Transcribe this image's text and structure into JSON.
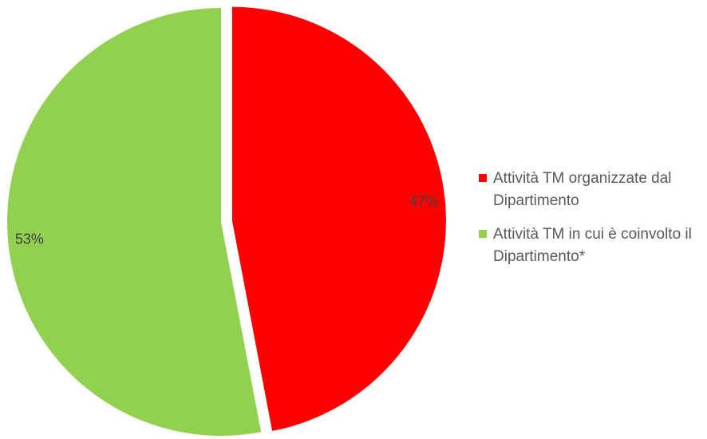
{
  "chart_data": {
    "type": "pie",
    "title": "",
    "slices": [
      {
        "label": "Attività TM organizzate dal Dipartimento",
        "value": 47,
        "data_label": "47%",
        "color": "#ff0000",
        "exploded": true
      },
      {
        "label": "Attività TM in cui è coinvolto il Dipartimento*",
        "value": 53,
        "data_label": "53%",
        "color": "#92d050",
        "exploded": false
      }
    ],
    "start_angle": "12 o'clock",
    "direction": "clockwise",
    "legend": {
      "position": "right"
    }
  }
}
